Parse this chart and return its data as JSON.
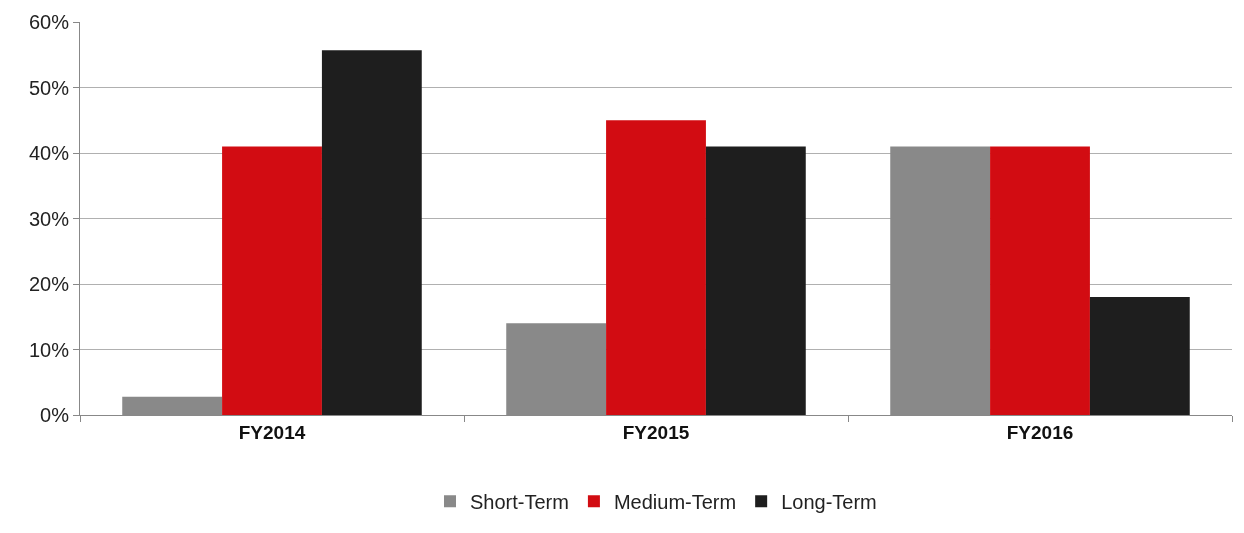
{
  "chart_data": {
    "type": "bar",
    "categories": [
      "FY2014",
      "FY2015",
      "FY2016"
    ],
    "series": [
      {
        "name": "Short-Term",
        "color": "#898989",
        "values": [
          2.8,
          14,
          41
        ]
      },
      {
        "name": "Medium-Term",
        "color": "#d20c12",
        "values": [
          41,
          45,
          41
        ]
      },
      {
        "name": "Long-Term",
        "color": "#1e1e1e",
        "values": [
          55.7,
          41,
          18
        ]
      }
    ],
    "ylim": [
      0,
      60
    ],
    "yticks": [
      {
        "value": 0,
        "label": "0%"
      },
      {
        "value": 10,
        "label": "10%"
      },
      {
        "value": 20,
        "label": "20%"
      },
      {
        "value": 30,
        "label": "30%"
      },
      {
        "value": 40,
        "label": "40%"
      },
      {
        "value": 50,
        "label": "50%"
      },
      {
        "value": 60,
        "label": "60%"
      }
    ],
    "grid": "y",
    "legend": "bottom"
  }
}
